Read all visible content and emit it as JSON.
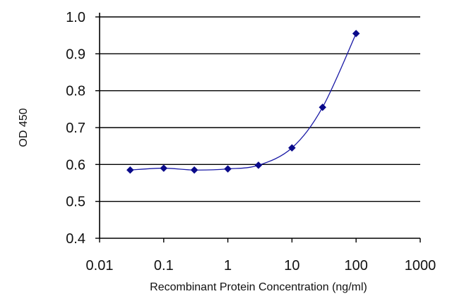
{
  "chart_data": {
    "type": "line",
    "xlabel": "Recombinant Protein Concentration (ng/ml)",
    "ylabel": "OD 450",
    "xscale": "log",
    "xlim": [
      0.01,
      1000
    ],
    "ylim": [
      0.4,
      1.0
    ],
    "x_ticks": [
      0.01,
      0.1,
      1,
      10,
      100,
      1000
    ],
    "x_tick_labels": [
      "0.01",
      "0.1",
      "1",
      "10",
      "100",
      "1000"
    ],
    "y_ticks": [
      0.4,
      0.5,
      0.6,
      0.7,
      0.8,
      0.9,
      1.0
    ],
    "y_tick_labels": [
      "0.4",
      "0.5",
      "0.6",
      "0.7",
      "0.8",
      "0.9",
      "1.0"
    ],
    "grid": "horizontal",
    "legend": "none",
    "series": [
      {
        "color": "#1a1aa6",
        "marker": "diamond",
        "x": [
          0.03,
          0.1,
          0.3,
          1,
          3,
          10,
          30,
          100
        ],
        "y": [
          0.585,
          0.59,
          0.585,
          0.588,
          0.598,
          0.645,
          0.755,
          0.955
        ]
      }
    ]
  }
}
